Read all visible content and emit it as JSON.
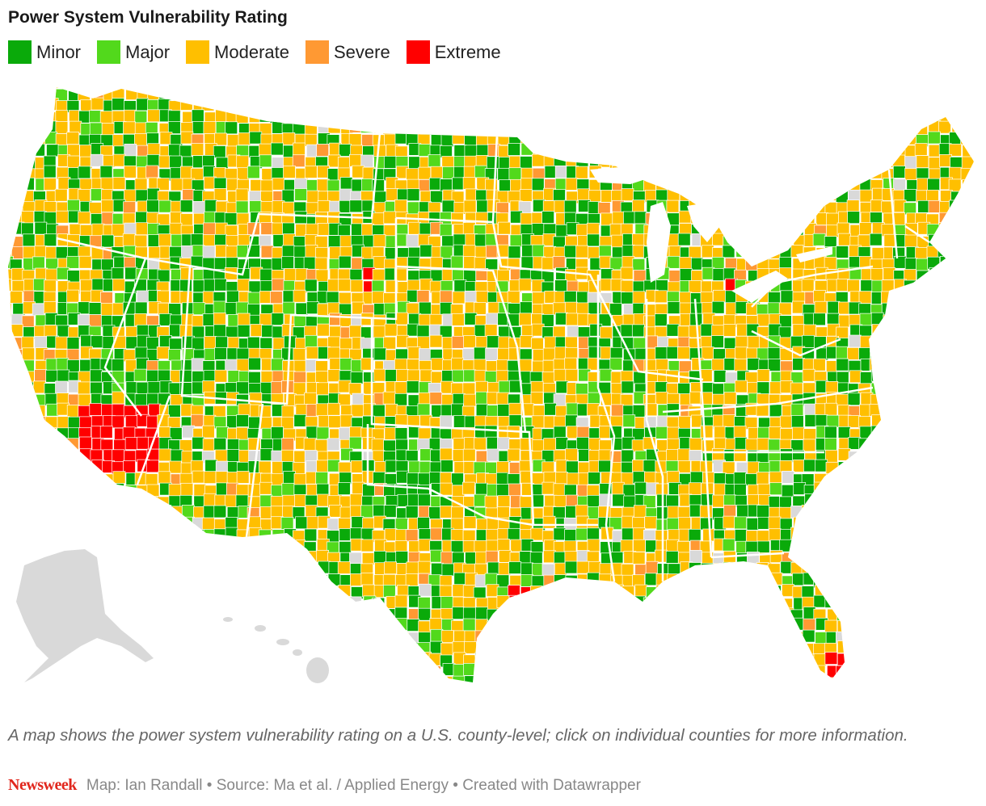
{
  "title": "Power System Vulnerability Rating",
  "legend": [
    {
      "label": "Minor",
      "color": "#0aaa0a"
    },
    {
      "label": "Major",
      "color": "#52d91c"
    },
    {
      "label": "Moderate",
      "color": "#ffbf00"
    },
    {
      "label": "Severe",
      "color": "#ff9933"
    },
    {
      "label": "Extreme",
      "color": "#ff0000"
    }
  ],
  "no_data_color": "#d9d9d9",
  "caption": "A map shows the power system vulnerability rating on a U.S. county-level; click on individual counties for more information.",
  "footer": {
    "brand": "Newsweek",
    "credits": "Map: Ian Randall • Source: Ma et al. / Applied Energy • Created with Datawrapper"
  }
}
